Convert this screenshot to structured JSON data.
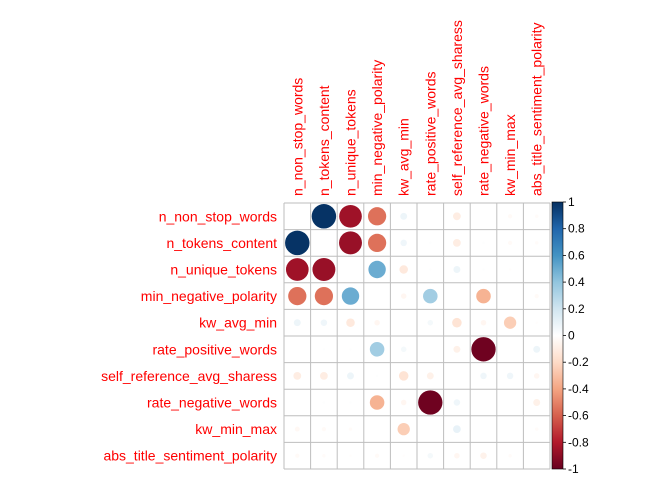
{
  "chart_data": {
    "type": "heatmap",
    "style": "corrplot-circle",
    "variables": [
      "n_non_stop_words",
      "n_tokens_content",
      "n_unique_tokens",
      "min_negative_polarity",
      "kw_avg_min",
      "rate_positive_words",
      "self_reference_avg_sharess",
      "rate_negative_words",
      "kw_min_max",
      "abs_title_sentiment_polarity"
    ],
    "matrix": [
      [
        null,
        0.99,
        -0.85,
        -0.55,
        0.08,
        0.0,
        -0.1,
        0.0,
        -0.03,
        -0.02
      ],
      [
        0.99,
        null,
        -0.87,
        -0.55,
        0.07,
        0.01,
        -0.1,
        0.01,
        -0.03,
        -0.02
      ],
      [
        -0.85,
        -0.87,
        null,
        0.5,
        -0.12,
        0.01,
        0.08,
        0.01,
        -0.01,
        0.0
      ],
      [
        -0.55,
        -0.55,
        0.5,
        null,
        -0.05,
        0.35,
        0.0,
        -0.35,
        0.0,
        -0.03
      ],
      [
        0.08,
        0.07,
        -0.12,
        -0.05,
        null,
        0.05,
        -0.15,
        -0.05,
        -0.25,
        -0.01
      ],
      [
        0.0,
        0.01,
        0.01,
        0.35,
        0.05,
        null,
        -0.08,
        -0.98,
        0.0,
        0.08
      ],
      [
        -0.1,
        -0.1,
        0.08,
        0.01,
        -0.15,
        -0.08,
        null,
        0.07,
        0.07,
        -0.05
      ],
      [
        0.0,
        0.01,
        0.01,
        -0.35,
        -0.05,
        -0.98,
        0.07,
        null,
        0.0,
        -0.08
      ],
      [
        -0.04,
        -0.03,
        -0.02,
        0.0,
        -0.25,
        0.0,
        0.1,
        0.0,
        null,
        -0.02
      ],
      [
        -0.03,
        -0.02,
        -0.01,
        -0.03,
        -0.01,
        0.05,
        -0.05,
        -0.07,
        -0.02,
        null
      ]
    ],
    "colorbar_ticks": [
      "1",
      "0.8",
      "0.6",
      "0.4",
      "0.2",
      "0",
      "-0.2",
      "-0.4",
      "-0.6",
      "-0.8",
      "-1"
    ],
    "range": [
      -1,
      1
    ],
    "palette": [
      "#67001F",
      "#B2182B",
      "#D6604D",
      "#F4A582",
      "#FDDBC7",
      "#FFFFFF",
      "#D1E5F0",
      "#92C5DE",
      "#4393C3",
      "#2166AC",
      "#053061"
    ],
    "label_color": "#ff0000",
    "grid": true,
    "legend": "right"
  }
}
